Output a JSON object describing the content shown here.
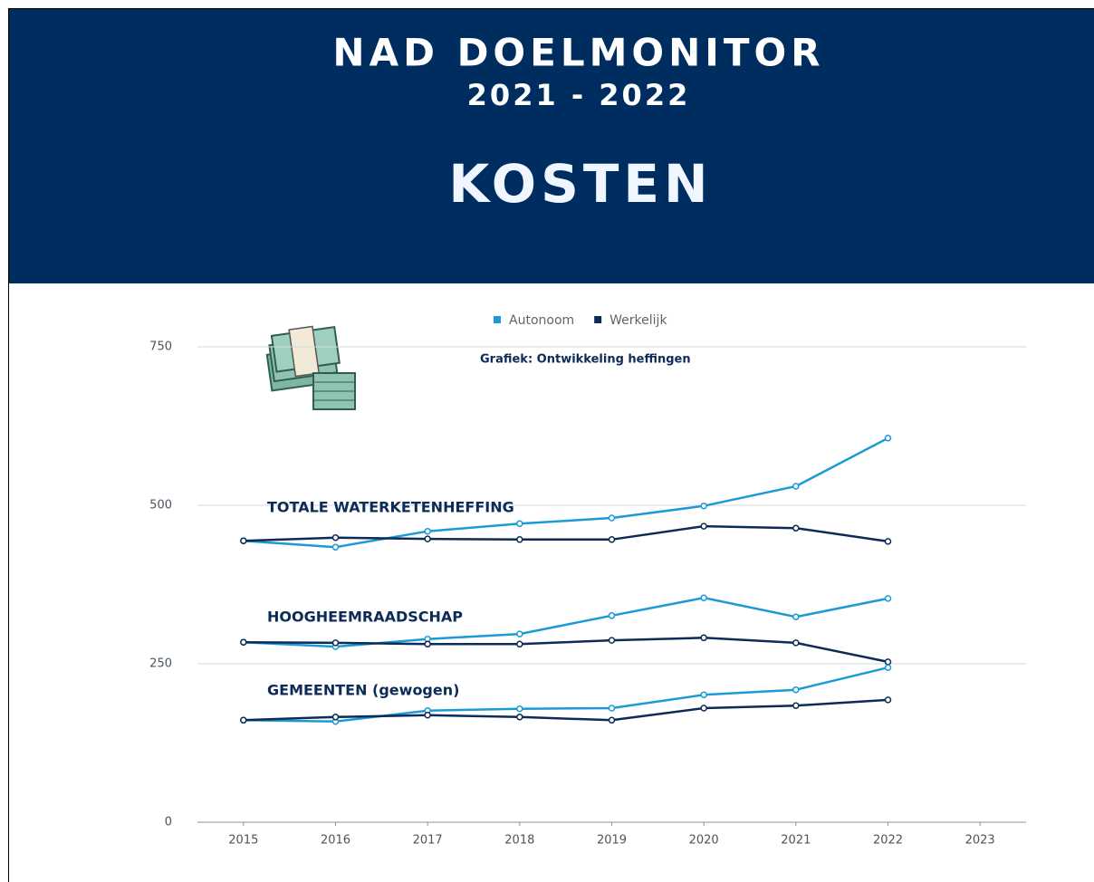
{
  "header": {
    "title": "NAD DOELMONITOR",
    "period": "2021 - 2022",
    "topic": "KOSTEN"
  },
  "chart_data": {
    "type": "line",
    "subtitle": "Grafiek: Ontwikkeling heffingen",
    "x": [
      2015,
      2016,
      2017,
      2018,
      2019,
      2020,
      2021,
      2022
    ],
    "xlim": [
      2014.5,
      2023.5
    ],
    "xticks": [
      2015,
      2016,
      2017,
      2018,
      2019,
      2020,
      2021,
      2022,
      2023
    ],
    "ylim": [
      0,
      750
    ],
    "yticks": [
      0,
      250,
      500,
      750
    ],
    "grid": true,
    "legend": [
      {
        "name": "Autonoom",
        "color": "#1b9ad6"
      },
      {
        "name": "Werkelijk",
        "color": "#0d2b57"
      }
    ],
    "groups": [
      {
        "label": "TOTALE WATERKETENHEFFING",
        "series": [
          [
            444,
            434,
            459,
            471,
            480,
            499,
            530,
            606
          ],
          [
            444,
            449,
            447,
            446,
            446,
            467,
            464,
            443
          ]
        ]
      },
      {
        "label": "HOOGHEEMRAADSCHAP",
        "series": [
          [
            284,
            277,
            289,
            297,
            326,
            354,
            324,
            353
          ],
          [
            284,
            283,
            281,
            281,
            287,
            291,
            283,
            253
          ]
        ]
      },
      {
        "label": "GEMEENTEN (gewogen)",
        "series": [
          [
            161,
            159,
            176,
            179,
            180,
            201,
            209,
            244
          ],
          [
            161,
            166,
            169,
            166,
            161,
            180,
            184,
            193
          ]
        ]
      }
    ]
  }
}
